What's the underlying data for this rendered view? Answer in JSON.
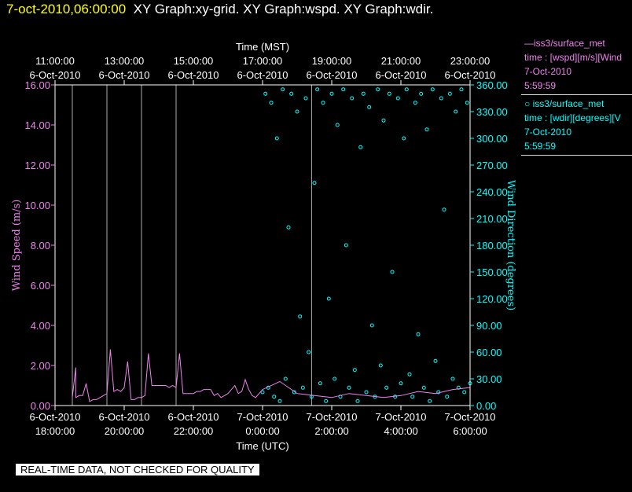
{
  "header": {
    "date": "7-oct-2010,06:00:00",
    "graphs": "XY Graph:xy-grid.  XY Graph:wspd.  XY Graph:wdir."
  },
  "legend": [
    {
      "line1": "—iss3/surface_met",
      "line2": "time : [wspd][m/s][Wind",
      "line3": "7-Oct-2010",
      "line4": "5:59:59",
      "color": "#ee82ee"
    },
    {
      "line1": "○ iss3/surface_met",
      "line2": "time : [wdir][degrees][V",
      "line3": "7-Oct-2010",
      "line4": "5:59:59",
      "color": "#00ffff"
    }
  ],
  "notice": "REAL-TIME DATA, NOT CHECKED FOR QUALITY",
  "chart_data": {
    "type": "scatter",
    "top_axis": {
      "title": "Time (MST)",
      "ticks": [
        {
          "time": "11:00:00",
          "date": "6-Oct-2010"
        },
        {
          "time": "13:00:00",
          "date": "6-Oct-2010"
        },
        {
          "time": "15:00:00",
          "date": "6-Oct-2010"
        },
        {
          "time": "17:00:00",
          "date": "6-Oct-2010"
        },
        {
          "time": "19:00:00",
          "date": "6-Oct-2010"
        },
        {
          "time": "21:00:00",
          "date": "6-Oct-2010"
        },
        {
          "time": "23:00:00",
          "date": "6-Oct-2010"
        }
      ]
    },
    "bottom_axis": {
      "title": "Time (UTC)",
      "ticks": [
        {
          "date": "6-Oct-2010",
          "time": "18:00:00"
        },
        {
          "date": "6-Oct-2010",
          "time": "20:00:00"
        },
        {
          "date": "6-Oct-2010",
          "time": "22:00:00"
        },
        {
          "date": "7-Oct-2010",
          "time": "0:00:00"
        },
        {
          "date": "7-Oct-2010",
          "time": "2:00:00"
        },
        {
          "date": "7-Oct-2010",
          "time": "4:00:00"
        },
        {
          "date": "7-Oct-2010",
          "time": "6:00:00"
        }
      ],
      "range": [
        "6-Oct-2010 18:00:00",
        "7-Oct-2010 6:00:00"
      ]
    },
    "left_axis": {
      "title": "Wind Speed (m/s)",
      "ylim": [
        0,
        16
      ],
      "ticks": [
        "0.00",
        "2.00",
        "4.00",
        "6.00",
        "8.00",
        "10.00",
        "12.00",
        "14.00",
        "16.00"
      ],
      "color": "#ee82ee"
    },
    "right_axis": {
      "title": "Wind Direction (degrees)",
      "ylim": [
        0,
        360
      ],
      "ticks": [
        "0.00",
        "30.00",
        "60.00",
        "90.00",
        "120.00",
        "150.00",
        "180.00",
        "210.00",
        "240.00",
        "270.00",
        "300.00",
        "330.00",
        "360.00"
      ],
      "color": "#00ffff"
    },
    "series": [
      {
        "name": "iss3/surface_met time : [wspd][m/s]",
        "axis": "left",
        "style": "line",
        "color": "#ee82ee",
        "x": [
          "18:30",
          "18:36",
          "18:36",
          "18:42",
          "18:48",
          "18:54",
          "19:00",
          "19:06",
          "19:12",
          "19:18",
          "19:24",
          "19:30",
          "19:36",
          "19:42",
          "19:48",
          "19:54",
          "20:00",
          "20:06",
          "20:12",
          "20:18",
          "20:24",
          "20:30",
          "20:36",
          "20:42",
          "20:48",
          "20:54",
          "21:00",
          "21:06",
          "21:12",
          "21:18",
          "21:24",
          "21:30",
          "21:36",
          "21:42",
          "21:48",
          "21:54",
          "22:00",
          "22:06",
          "22:12",
          "22:18",
          "22:24",
          "22:30",
          "22:36",
          "22:42",
          "22:48",
          "22:54",
          "23:00",
          "23:06",
          "23:12",
          "23:18",
          "23:24",
          "23:30",
          "23:36",
          "23:42",
          "23:48",
          "23:54",
          "0:00",
          "0:30",
          "1:00",
          "1:30",
          "2:00",
          "2:30",
          "3:00",
          "3:30",
          "4:00",
          "4:30",
          "5:00",
          "5:30",
          "6:00"
        ],
        "values": [
          0.4,
          1.9,
          0.4,
          0.5,
          0.5,
          1.1,
          0.2,
          0.3,
          0.3,
          0.4,
          0.5,
          0.6,
          2.8,
          0.7,
          0.8,
          0.7,
          0.9,
          2.2,
          0.3,
          0.3,
          0.4,
          0.4,
          0.5,
          2.6,
          1.0,
          1.0,
          1.0,
          1.0,
          1.0,
          0.9,
          1.0,
          0.9,
          2.6,
          0.6,
          0.6,
          0.6,
          0.6,
          0.7,
          0.7,
          0.8,
          0.8,
          0.8,
          0.5,
          0.6,
          0.4,
          0.5,
          0.6,
          0.8,
          1.0,
          0.6,
          0.7,
          1.3,
          0.8,
          0.5,
          0.4,
          0.6,
          0.8,
          1.2,
          0.6,
          0.5,
          0.4,
          0.6,
          0.5,
          0.4,
          0.5,
          0.7,
          0.6,
          0.8,
          0.9
        ]
      },
      {
        "name": "iss3/surface_met time : [wdir][degrees]",
        "axis": "right",
        "style": "circles",
        "color": "#00ffff",
        "x": [
          "0:00",
          "0:05",
          "0:10",
          "0:15",
          "0:20",
          "0:25",
          "0:30",
          "0:35",
          "0:40",
          "0:45",
          "0:50",
          "0:55",
          "1:00",
          "1:05",
          "1:10",
          "1:15",
          "1:20",
          "1:25",
          "1:30",
          "1:35",
          "1:40",
          "1:45",
          "1:50",
          "1:55",
          "2:00",
          "2:05",
          "2:10",
          "2:15",
          "2:20",
          "2:25",
          "2:30",
          "2:35",
          "2:40",
          "2:45",
          "2:50",
          "2:55",
          "3:00",
          "3:05",
          "3:10",
          "3:15",
          "3:20",
          "3:25",
          "3:30",
          "3:35",
          "3:40",
          "3:45",
          "3:50",
          "3:55",
          "4:00",
          "4:05",
          "4:10",
          "4:15",
          "4:20",
          "4:25",
          "4:30",
          "4:35",
          "4:40",
          "4:45",
          "4:50",
          "4:55",
          "5:00",
          "5:05",
          "5:10",
          "5:15",
          "5:20",
          "5:25",
          "5:30",
          "5:35",
          "5:40",
          "5:45",
          "5:50",
          "5:55",
          "6:00"
        ],
        "values": [
          15,
          350,
          20,
          340,
          10,
          300,
          5,
          355,
          30,
          200,
          350,
          15,
          330,
          100,
          20,
          345,
          60,
          10,
          250,
          355,
          25,
          340,
          5,
          120,
          350,
          30,
          315,
          10,
          355,
          180,
          20,
          345,
          40,
          5,
          290,
          350,
          15,
          335,
          90,
          10,
          355,
          45,
          320,
          20,
          350,
          150,
          10,
          345,
          25,
          300,
          355,
          35,
          10,
          340,
          80,
          350,
          20,
          310,
          5,
          355,
          50,
          15,
          345,
          220,
          10,
          350,
          30,
          330,
          20,
          355,
          15,
          340,
          25
        ]
      }
    ],
    "grid": "vertical lines at selected times"
  }
}
